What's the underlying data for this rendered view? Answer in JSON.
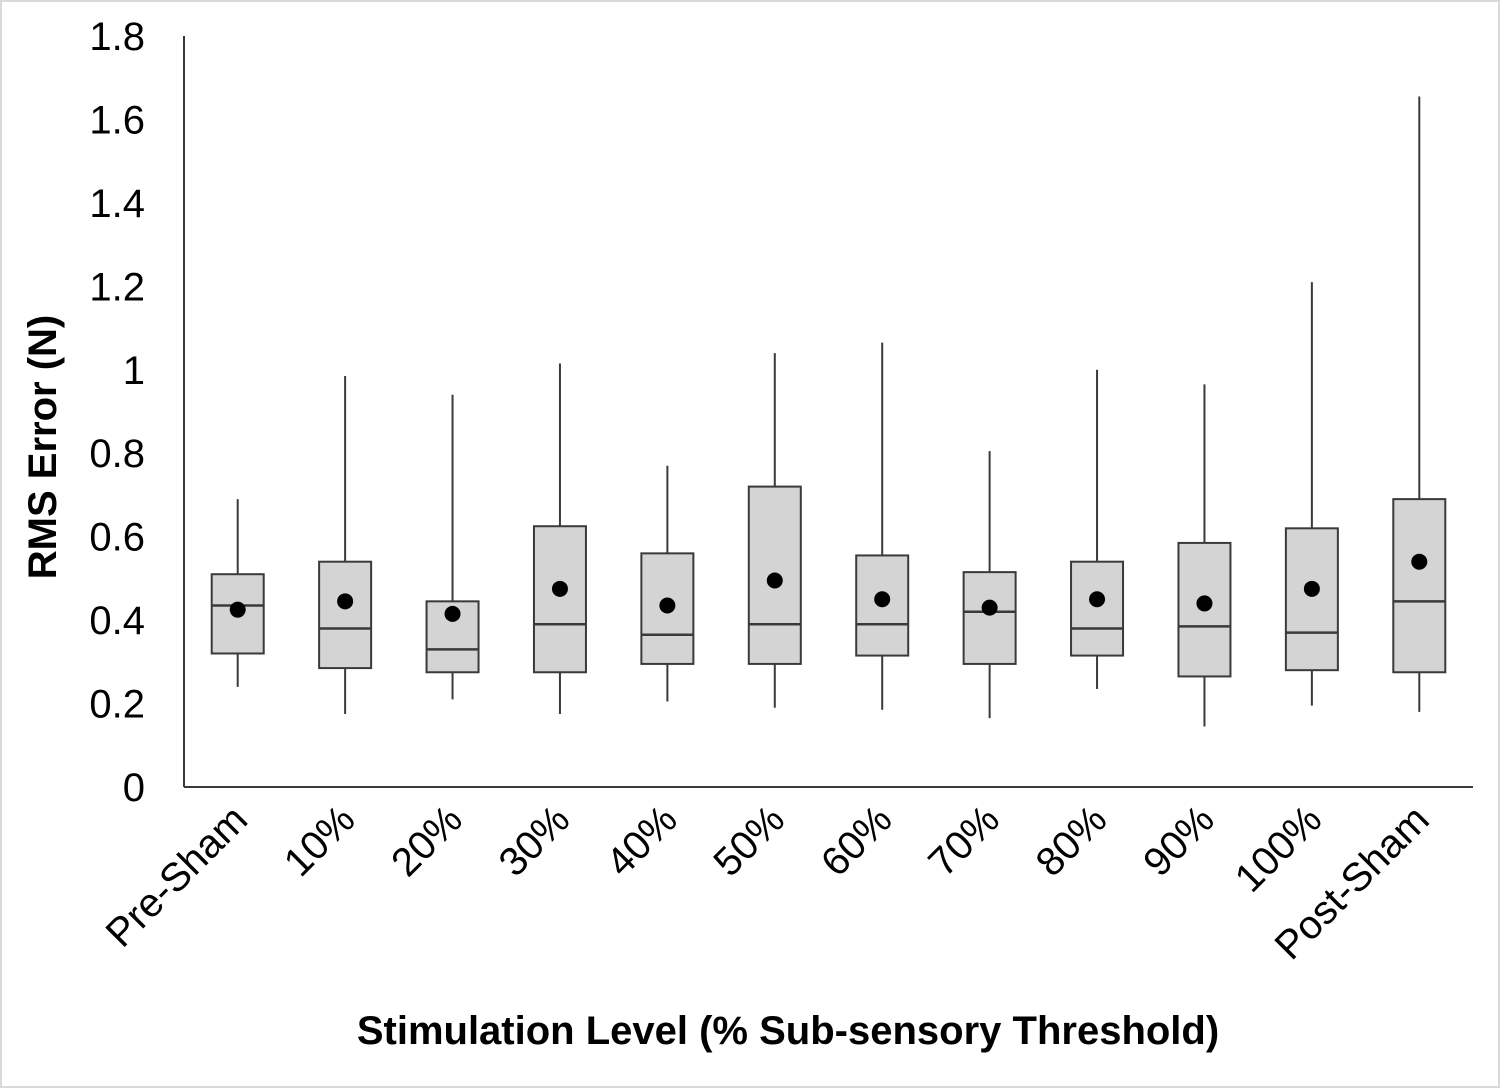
{
  "chart_data": {
    "type": "boxplot",
    "title": "",
    "xlabel": "Stimulation Level (% Sub-sensory Threshold)",
    "ylabel": "RMS Error (N)",
    "ylim": [
      0,
      1.8
    ],
    "yticks": [
      {
        "value": 0,
        "label": "0"
      },
      {
        "value": 0.2,
        "label": "0.2"
      },
      {
        "value": 0.4,
        "label": "0.4"
      },
      {
        "value": 0.6,
        "label": "0.6"
      },
      {
        "value": 0.8,
        "label": "0.8"
      },
      {
        "value": 1.0,
        "label": "1"
      },
      {
        "value": 1.2,
        "label": "1.2"
      },
      {
        "value": 1.4,
        "label": "1.4"
      },
      {
        "value": 1.6,
        "label": "1.6"
      },
      {
        "value": 1.8,
        "label": "1.8"
      }
    ],
    "grid": false,
    "legend": "none",
    "colors": {
      "box_fill": "#d4d4d4",
      "box_stroke": "#3a3a3a",
      "whisker": "#3a3a3a",
      "mean_marker": "#000000",
      "axis": "#3a3a3a",
      "frame": "#d9d9d9"
    },
    "categories": [
      "Pre-Sham",
      "10%",
      "20%",
      "30%",
      "40%",
      "50%",
      "60%",
      "70%",
      "80%",
      "90%",
      "100%",
      "Post-Sham"
    ],
    "boxes": [
      {
        "category": "Pre-Sham",
        "min": 0.24,
        "q1": 0.32,
        "median": 0.435,
        "q3": 0.51,
        "max": 0.69,
        "mean": 0.425
      },
      {
        "category": "10%",
        "min": 0.175,
        "q1": 0.285,
        "median": 0.38,
        "q3": 0.54,
        "max": 0.985,
        "mean": 0.445
      },
      {
        "category": "20%",
        "min": 0.21,
        "q1": 0.275,
        "median": 0.33,
        "q3": 0.445,
        "max": 0.94,
        "mean": 0.415
      },
      {
        "category": "30%",
        "min": 0.175,
        "q1": 0.275,
        "median": 0.39,
        "q3": 0.625,
        "max": 1.015,
        "mean": 0.475
      },
      {
        "category": "40%",
        "min": 0.205,
        "q1": 0.295,
        "median": 0.365,
        "q3": 0.56,
        "max": 0.77,
        "mean": 0.435
      },
      {
        "category": "50%",
        "min": 0.19,
        "q1": 0.295,
        "median": 0.39,
        "q3": 0.72,
        "max": 1.04,
        "mean": 0.495
      },
      {
        "category": "60%",
        "min": 0.185,
        "q1": 0.315,
        "median": 0.39,
        "q3": 0.555,
        "max": 1.065,
        "mean": 0.45
      },
      {
        "category": "70%",
        "min": 0.165,
        "q1": 0.295,
        "median": 0.42,
        "q3": 0.515,
        "max": 0.805,
        "mean": 0.43
      },
      {
        "category": "80%",
        "min": 0.235,
        "q1": 0.315,
        "median": 0.38,
        "q3": 0.54,
        "max": 1.0,
        "mean": 0.45
      },
      {
        "category": "90%",
        "min": 0.145,
        "q1": 0.265,
        "median": 0.385,
        "q3": 0.585,
        "max": 0.965,
        "mean": 0.44
      },
      {
        "category": "100%",
        "min": 0.195,
        "q1": 0.28,
        "median": 0.37,
        "q3": 0.62,
        "max": 1.21,
        "mean": 0.475
      },
      {
        "category": "Post-Sham",
        "min": 0.18,
        "q1": 0.275,
        "median": 0.445,
        "q3": 0.69,
        "max": 1.655,
        "mean": 0.54
      }
    ]
  }
}
